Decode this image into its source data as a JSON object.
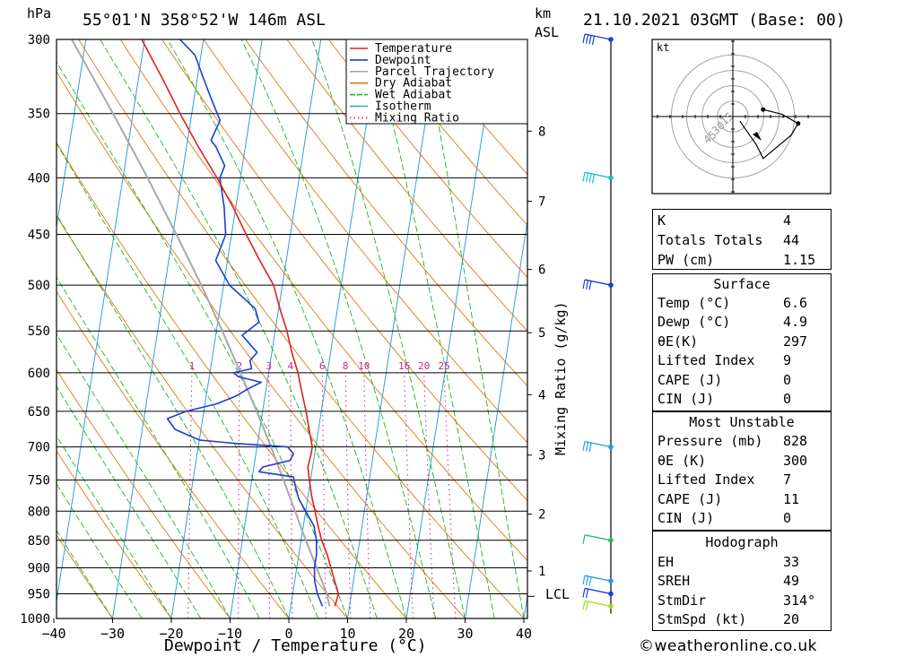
{
  "header": {
    "pressure_unit": "hPa",
    "location": "55°01'N  358°52'W  146m  ASL",
    "height_unit": "km",
    "height_ref": "ASL",
    "datetime": "21.10.2021  03GMT  (Base: 00)"
  },
  "chart_data": {
    "type": "skew-t",
    "xlabel": "Dewpoint / Temperature (°C)",
    "ylabel_left": "hPa",
    "ylabel_right": "Mixing Ratio (g/kg)",
    "x_ticks": [
      -40,
      -30,
      -20,
      -10,
      0,
      10,
      20,
      30,
      40
    ],
    "x_tick_labels": [
      "−40",
      "−30",
      "−20",
      "−10",
      "0",
      "10",
      "20",
      "30",
      "40"
    ],
    "pressure_levels": [
      300,
      350,
      400,
      450,
      500,
      550,
      600,
      650,
      700,
      750,
      800,
      850,
      900,
      950,
      1000
    ],
    "km_ticks": [
      {
        "km": 1,
        "p": 906
      },
      {
        "km": 2,
        "p": 805
      },
      {
        "km": 3,
        "p": 712
      },
      {
        "km": 4,
        "p": 628
      },
      {
        "km": 5,
        "p": 552
      },
      {
        "km": 6,
        "p": 484
      },
      {
        "km": 7,
        "p": 420
      },
      {
        "km": 8,
        "p": 363
      }
    ],
    "lcl": {
      "label": "LCL",
      "p": 955
    },
    "mixing_ratios": [
      1,
      2,
      3,
      4,
      6,
      8,
      10,
      16,
      20,
      25
    ],
    "legend": [
      {
        "name": "Temperature",
        "color": "#e02020"
      },
      {
        "name": "Dewpoint",
        "color": "#1a3fd8"
      },
      {
        "name": "Parcel Trajectory",
        "color": "#a8a8a8"
      },
      {
        "name": "Dry Adiabat",
        "color": "#e07810"
      },
      {
        "name": "Wet Adiabat",
        "color": "#18b818"
      },
      {
        "name": "Isotherm",
        "color": "#2d9fe0"
      },
      {
        "name": "Mixing Ratio",
        "color": "#d0208a"
      }
    ],
    "temperature": [
      [
        975,
        7.5
      ],
      [
        950,
        7.8
      ],
      [
        925,
        6.8
      ],
      [
        900,
        5.8
      ],
      [
        875,
        4.8
      ],
      [
        850,
        3.5
      ],
      [
        825,
        2.5
      ],
      [
        800,
        1.6
      ],
      [
        775,
        0.6
      ],
      [
        750,
        -0.2
      ],
      [
        730,
        -0.8
      ],
      [
        710,
        -0.6
      ],
      [
        700,
        -0.6
      ],
      [
        675,
        -1.6
      ],
      [
        650,
        -2.6
      ],
      [
        625,
        -3.8
      ],
      [
        600,
        -5.0
      ],
      [
        575,
        -6.6
      ],
      [
        550,
        -8.0
      ],
      [
        525,
        -9.8
      ],
      [
        500,
        -11.5
      ],
      [
        475,
        -14.5
      ],
      [
        450,
        -17.5
      ],
      [
        425,
        -20.5
      ],
      [
        400,
        -24
      ],
      [
        375,
        -28
      ],
      [
        350,
        -32
      ],
      [
        325,
        -36
      ],
      [
        300,
        -40.5
      ]
    ],
    "dewpoint": [
      [
        975,
        5.4
      ],
      [
        950,
        4.2
      ],
      [
        925,
        3.4
      ],
      [
        900,
        3.0
      ],
      [
        875,
        3.0
      ],
      [
        850,
        2.6
      ],
      [
        825,
        1.8
      ],
      [
        800,
        0.0
      ],
      [
        780,
        -1.5
      ],
      [
        760,
        -2.4
      ],
      [
        745,
        -3.0
      ],
      [
        737,
        -9.0
      ],
      [
        730,
        -8.5
      ],
      [
        720,
        -4.0
      ],
      [
        710,
        -3.6
      ],
      [
        700,
        -4.8
      ],
      [
        695,
        -13.6
      ],
      [
        690,
        -20.0
      ],
      [
        675,
        -24.4
      ],
      [
        660,
        -26.0
      ],
      [
        650,
        -23.0
      ],
      [
        640,
        -18.0
      ],
      [
        630,
        -15.0
      ],
      [
        620,
        -13.0
      ],
      [
        612,
        -11.0
      ],
      [
        605,
        -15.0
      ],
      [
        600,
        -16.0
      ],
      [
        595,
        -13.0
      ],
      [
        585,
        -13.5
      ],
      [
        575,
        -12.5
      ],
      [
        565,
        -14.0
      ],
      [
        555,
        -15.5
      ],
      [
        540,
        -13.0
      ],
      [
        525,
        -14.0
      ],
      [
        500,
        -19.0
      ],
      [
        475,
        -22.0
      ],
      [
        450,
        -21.0
      ],
      [
        425,
        -22.0
      ],
      [
        400,
        -23.5
      ],
      [
        390,
        -23.0
      ],
      [
        375,
        -25.0
      ],
      [
        370,
        -26.0
      ],
      [
        355,
        -25.0
      ],
      [
        340,
        -27.0
      ],
      [
        325,
        -29.0
      ],
      [
        310,
        -31.0
      ],
      [
        300,
        -34.0
      ]
    ],
    "parcel": [
      [
        975,
        6.6
      ],
      [
        950,
        5.8
      ],
      [
        900,
        3.4
      ],
      [
        850,
        0.8
      ],
      [
        800,
        -1.8
      ],
      [
        750,
        -4.6
      ],
      [
        700,
        -7.6
      ],
      [
        650,
        -11.0
      ],
      [
        600,
        -14.8
      ],
      [
        550,
        -19.0
      ],
      [
        500,
        -23.8
      ],
      [
        450,
        -29.4
      ],
      [
        400,
        -35.8
      ],
      [
        350,
        -43.4
      ],
      [
        300,
        -52.4
      ]
    ]
  },
  "wind_barbs": [
    {
      "p": 300,
      "speed_kt": 35
    },
    {
      "p": 400,
      "speed_kt": 40
    },
    {
      "p": 500,
      "speed_kt": 30
    },
    {
      "p": 700,
      "speed_kt": 25
    },
    {
      "p": 850,
      "speed_kt": 10
    },
    {
      "p": 925,
      "speed_kt": 25
    },
    {
      "p": 950,
      "speed_kt": 20
    },
    {
      "p": 975,
      "speed_kt": 20
    }
  ],
  "hodograph": {
    "unit": "kt",
    "rings": [
      "15",
      "30",
      "45"
    ],
    "points": [
      [
        13,
        -3
      ],
      [
        21,
        -1
      ],
      [
        28,
        3
      ],
      [
        25,
        8
      ],
      [
        13,
        18
      ],
      [
        10,
        12
      ],
      [
        3,
        2
      ]
    ]
  },
  "stats_panel": {
    "rows": [
      {
        "label": "K",
        "value": "4"
      },
      {
        "label": "Totals Totals",
        "value": "44"
      },
      {
        "label": "PW (cm)",
        "value": "1.15"
      }
    ]
  },
  "surface_panel": {
    "title": "Surface",
    "rows": [
      {
        "label": "Temp (°C)",
        "value": "6.6"
      },
      {
        "label": "Dewp (°C)",
        "value": "4.9"
      },
      {
        "label": "θE(K)",
        "value": "297"
      },
      {
        "label": "Lifted Index",
        "value": "9"
      },
      {
        "label": "CAPE (J)",
        "value": "0"
      },
      {
        "label": "CIN (J)",
        "value": "0"
      }
    ]
  },
  "unstable_panel": {
    "title": "Most Unstable",
    "rows": [
      {
        "label": "Pressure (mb)",
        "value": "828"
      },
      {
        "label": "θE (K)",
        "value": "300"
      },
      {
        "label": "Lifted Index",
        "value": "7"
      },
      {
        "label": "CAPE (J)",
        "value": "11"
      },
      {
        "label": "CIN (J)",
        "value": "0"
      }
    ]
  },
  "hodo_panel": {
    "title": "Hodograph",
    "rows": [
      {
        "label": "EH",
        "value": "33"
      },
      {
        "label": "SREH",
        "value": "49"
      },
      {
        "label": "StmDir",
        "value": "314°"
      },
      {
        "label": "StmSpd (kt)",
        "value": "20"
      }
    ]
  },
  "footer": {
    "credit": "©weatheronline.co.uk"
  }
}
